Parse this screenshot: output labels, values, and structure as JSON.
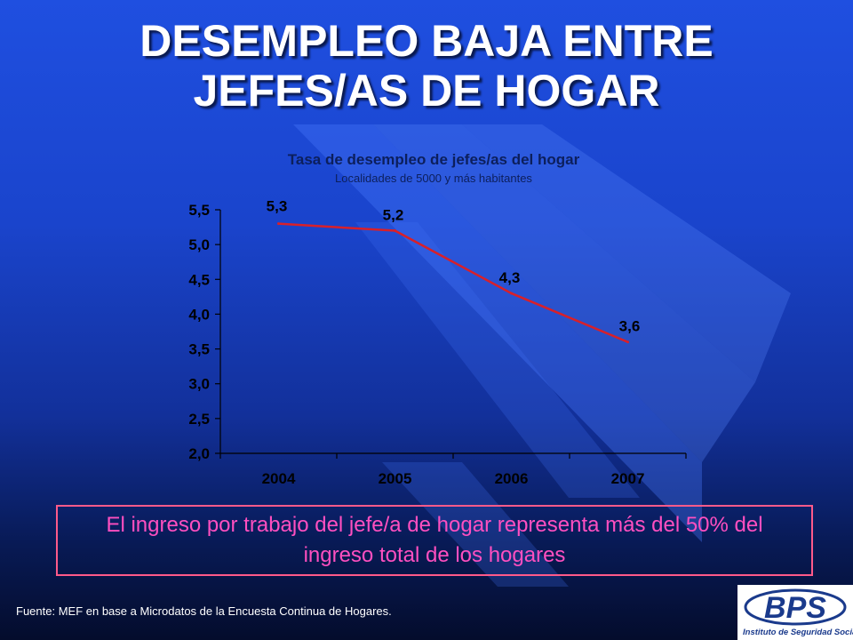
{
  "slide": {
    "title_line1": "DESEMPLEO BAJA ENTRE",
    "title_line2": "JEFES/AS DE HOGAR",
    "note": "El ingreso por trabajo del jefe/a de hogar representa más del 50% del ingreso total de los hogares",
    "source": "Fuente: MEF en base a Microdatos de la Encuesta Continua de Hogares.",
    "logo": {
      "letters": "BPS",
      "name": "Instituto de Seguridad Social"
    }
  },
  "colors": {
    "line": "#d8202a",
    "axis_text": "#000000",
    "title": "#ffffff",
    "note_text": "#ff4fc0",
    "note_border": "#ff5a8a",
    "logo_blue": "#1a3a8c"
  },
  "chart_data": {
    "type": "line",
    "title": "Tasa de desempleo de jefes/as del hogar",
    "subtitle": "Localidades de 5000 y más habitantes",
    "categories": [
      "2004",
      "2005",
      "2006",
      "2007"
    ],
    "series": [
      {
        "values": [
          5.3,
          5.2,
          4.3,
          3.6
        ],
        "labels": [
          "5,3",
          "5,2",
          "4,3",
          "3,6"
        ]
      }
    ],
    "ylim": [
      2.0,
      5.5
    ],
    "yticks": [
      2.0,
      2.5,
      3.0,
      3.5,
      4.0,
      4.5,
      5.0,
      5.5
    ],
    "ytick_labels": [
      "2,0",
      "2,5",
      "3,0",
      "3,5",
      "4,0",
      "4,5",
      "5,0",
      "5,5"
    ],
    "grid": false,
    "legend": "none"
  }
}
